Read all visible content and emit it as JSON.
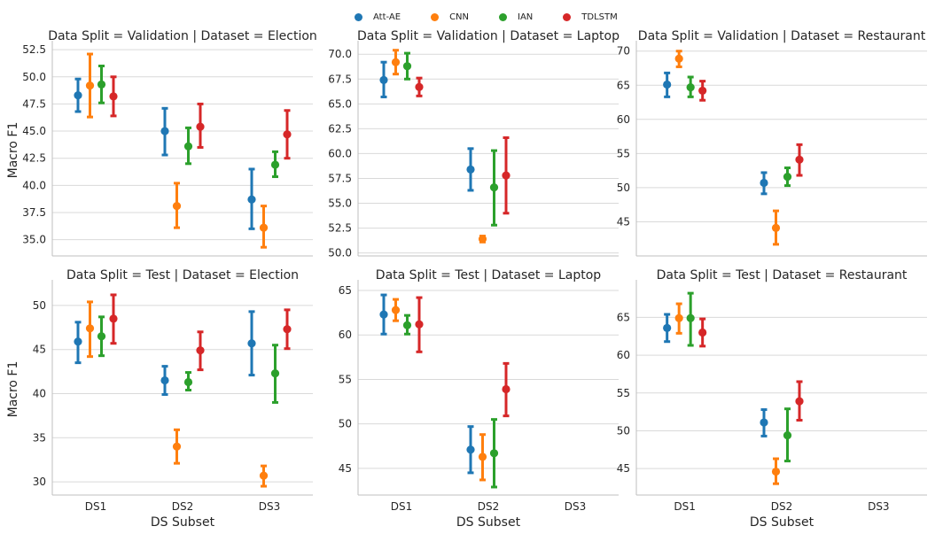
{
  "legend": [
    {
      "name": "Att-AE",
      "color": "#1f77b4"
    },
    {
      "name": "CNN",
      "color": "#ff7f0e"
    },
    {
      "name": "IAN",
      "color": "#2ca02c"
    },
    {
      "name": "TDLSTM",
      "color": "#d62728"
    }
  ],
  "chart_data": [
    {
      "type": "scatter",
      "title": "Data Split = Validation | Dataset = Election",
      "categories": [
        "DS1",
        "DS2",
        "DS3"
      ],
      "ylabel": "Macro F1",
      "xlabel": "",
      "ylim": [
        33.5,
        53.0
      ],
      "yticks": [
        "35.0",
        "37.5",
        "40.0",
        "42.5",
        "45.0",
        "47.5",
        "50.0",
        "52.5"
      ],
      "show_xticklabels": false,
      "series": [
        {
          "name": "Att-AE",
          "points": [
            {
              "x": "DS1",
              "y": 48.3,
              "low": 46.8,
              "high": 49.8
            },
            {
              "x": "DS2",
              "y": 45.0,
              "low": 42.8,
              "high": 47.1
            },
            {
              "x": "DS3",
              "y": 38.7,
              "low": 36.0,
              "high": 41.5
            }
          ]
        },
        {
          "name": "CNN",
          "points": [
            {
              "x": "DS1",
              "y": 49.2,
              "low": 46.3,
              "high": 52.1
            },
            {
              "x": "DS2",
              "y": 38.1,
              "low": 36.1,
              "high": 40.2
            },
            {
              "x": "DS3",
              "y": 36.1,
              "low": 34.3,
              "high": 38.1
            }
          ]
        },
        {
          "name": "IAN",
          "points": [
            {
              "x": "DS1",
              "y": 49.3,
              "low": 47.6,
              "high": 51.0
            },
            {
              "x": "DS2",
              "y": 43.6,
              "low": 42.0,
              "high": 45.3
            },
            {
              "x": "DS3",
              "y": 41.9,
              "low": 40.8,
              "high": 43.1
            }
          ]
        },
        {
          "name": "TDLSTM",
          "points": [
            {
              "x": "DS1",
              "y": 48.2,
              "low": 46.4,
              "high": 50.0
            },
            {
              "x": "DS2",
              "y": 45.4,
              "low": 43.5,
              "high": 47.5
            },
            {
              "x": "DS3",
              "y": 44.7,
              "low": 42.5,
              "high": 46.9
            }
          ]
        }
      ]
    },
    {
      "type": "scatter",
      "title": "Data Split = Validation | Dataset = Laptop",
      "categories": [
        "DS1",
        "DS2",
        "DS3"
      ],
      "ylabel": "",
      "xlabel": "",
      "ylim": [
        49.7,
        71.0
      ],
      "yticks": [
        "50.0",
        "52.5",
        "55.0",
        "57.5",
        "60.0",
        "62.5",
        "65.0",
        "67.5",
        "70.0"
      ],
      "show_xticklabels": false,
      "series": [
        {
          "name": "Att-AE",
          "points": [
            {
              "x": "DS1",
              "y": 67.4,
              "low": 65.7,
              "high": 69.2
            },
            {
              "x": "DS2",
              "y": 58.4,
              "low": 56.3,
              "high": 60.5
            }
          ]
        },
        {
          "name": "CNN",
          "points": [
            {
              "x": "DS1",
              "y": 69.2,
              "low": 68.0,
              "high": 70.4
            },
            {
              "x": "DS2",
              "y": 51.4,
              "low": 51.1,
              "high": 51.7
            }
          ]
        },
        {
          "name": "IAN",
          "points": [
            {
              "x": "DS1",
              "y": 68.8,
              "low": 67.5,
              "high": 70.1
            },
            {
              "x": "DS2",
              "y": 56.6,
              "low": 52.8,
              "high": 60.3
            }
          ]
        },
        {
          "name": "TDLSTM",
          "points": [
            {
              "x": "DS1",
              "y": 66.7,
              "low": 65.8,
              "high": 67.6
            },
            {
              "x": "DS2",
              "y": 57.8,
              "low": 54.0,
              "high": 61.6
            }
          ]
        }
      ]
    },
    {
      "type": "scatter",
      "title": "Data Split = Validation | Dataset = Restaurant",
      "categories": [
        "DS1",
        "DS2",
        "DS3"
      ],
      "ylabel": "",
      "xlabel": "",
      "ylim": [
        40.0,
        71.0
      ],
      "yticks": [
        "45",
        "50",
        "55",
        "60",
        "65",
        "70"
      ],
      "show_xticklabels": false,
      "series": [
        {
          "name": "Att-AE",
          "points": [
            {
              "x": "DS1",
              "y": 65.1,
              "low": 63.3,
              "high": 66.8
            },
            {
              "x": "DS2",
              "y": 50.7,
              "low": 49.1,
              "high": 52.2
            }
          ]
        },
        {
          "name": "CNN",
          "points": [
            {
              "x": "DS1",
              "y": 68.9,
              "low": 67.7,
              "high": 70.0
            },
            {
              "x": "DS2",
              "y": 44.1,
              "low": 41.7,
              "high": 46.6
            }
          ]
        },
        {
          "name": "IAN",
          "points": [
            {
              "x": "DS1",
              "y": 64.7,
              "low": 63.3,
              "high": 66.2
            },
            {
              "x": "DS2",
              "y": 51.6,
              "low": 50.3,
              "high": 52.9
            }
          ]
        },
        {
          "name": "TDLSTM",
          "points": [
            {
              "x": "DS1",
              "y": 64.2,
              "low": 62.8,
              "high": 65.6
            },
            {
              "x": "DS2",
              "y": 54.1,
              "low": 51.8,
              "high": 56.3
            }
          ]
        }
      ]
    },
    {
      "type": "scatter",
      "title": "Data Split = Test | Dataset = Election",
      "categories": [
        "DS1",
        "DS2",
        "DS3"
      ],
      "ylabel": "Macro F1",
      "xlabel": "DS Subset",
      "ylim": [
        28.5,
        52.5
      ],
      "yticks": [
        "30",
        "35",
        "40",
        "45",
        "50"
      ],
      "show_xticklabels": true,
      "series": [
        {
          "name": "Att-AE",
          "points": [
            {
              "x": "DS1",
              "y": 45.9,
              "low": 43.5,
              "high": 48.1
            },
            {
              "x": "DS2",
              "y": 41.5,
              "low": 39.9,
              "high": 43.1
            },
            {
              "x": "DS3",
              "y": 45.7,
              "low": 42.1,
              "high": 49.3
            }
          ]
        },
        {
          "name": "CNN",
          "points": [
            {
              "x": "DS1",
              "y": 47.4,
              "low": 44.2,
              "high": 50.4
            },
            {
              "x": "DS2",
              "y": 34.0,
              "low": 32.1,
              "high": 35.9
            },
            {
              "x": "DS3",
              "y": 30.7,
              "low": 29.5,
              "high": 31.8
            }
          ]
        },
        {
          "name": "IAN",
          "points": [
            {
              "x": "DS1",
              "y": 46.5,
              "low": 44.3,
              "high": 48.7
            },
            {
              "x": "DS2",
              "y": 41.3,
              "low": 40.4,
              "high": 42.4
            },
            {
              "x": "DS3",
              "y": 42.3,
              "low": 39.0,
              "high": 45.5
            }
          ]
        },
        {
          "name": "TDLSTM",
          "points": [
            {
              "x": "DS1",
              "y": 48.5,
              "low": 45.7,
              "high": 51.2
            },
            {
              "x": "DS2",
              "y": 44.9,
              "low": 42.7,
              "high": 47.0
            },
            {
              "x": "DS3",
              "y": 47.3,
              "low": 45.1,
              "high": 49.5
            }
          ]
        }
      ]
    },
    {
      "type": "scatter",
      "title": "Data Split = Test | Dataset = Laptop",
      "categories": [
        "DS1",
        "DS2",
        "DS3"
      ],
      "ylabel": "",
      "xlabel": "DS Subset",
      "ylim": [
        42.0,
        65.8
      ],
      "yticks": [
        "45",
        "50",
        "55",
        "60",
        "65"
      ],
      "show_xticklabels": true,
      "series": [
        {
          "name": "Att-AE",
          "points": [
            {
              "x": "DS1",
              "y": 62.3,
              "low": 60.1,
              "high": 64.5
            },
            {
              "x": "DS2",
              "y": 47.1,
              "low": 44.5,
              "high": 49.7
            }
          ]
        },
        {
          "name": "CNN",
          "points": [
            {
              "x": "DS1",
              "y": 62.8,
              "low": 61.6,
              "high": 64.0
            },
            {
              "x": "DS2",
              "y": 46.3,
              "low": 43.7,
              "high": 48.8
            }
          ]
        },
        {
          "name": "IAN",
          "points": [
            {
              "x": "DS1",
              "y": 61.1,
              "low": 60.1,
              "high": 62.2
            },
            {
              "x": "DS2",
              "y": 46.7,
              "low": 42.9,
              "high": 50.5
            }
          ]
        },
        {
          "name": "TDLSTM",
          "points": [
            {
              "x": "DS1",
              "y": 61.2,
              "low": 58.1,
              "high": 64.2
            },
            {
              "x": "DS2",
              "y": 53.9,
              "low": 50.9,
              "high": 56.8
            }
          ]
        }
      ]
    },
    {
      "type": "scatter",
      "title": "Data Split = Test | Dataset = Restaurant",
      "categories": [
        "DS1",
        "DS2",
        "DS3"
      ],
      "ylabel": "",
      "xlabel": "DS Subset",
      "ylim": [
        41.5,
        69.5
      ],
      "yticks": [
        "45",
        "50",
        "55",
        "60",
        "65"
      ],
      "show_xticklabels": true,
      "series": [
        {
          "name": "Att-AE",
          "points": [
            {
              "x": "DS1",
              "y": 63.6,
              "low": 61.8,
              "high": 65.4
            },
            {
              "x": "DS2",
              "y": 51.1,
              "low": 49.3,
              "high": 52.8
            }
          ]
        },
        {
          "name": "CNN",
          "points": [
            {
              "x": "DS1",
              "y": 64.9,
              "low": 62.9,
              "high": 66.8
            },
            {
              "x": "DS2",
              "y": 44.6,
              "low": 43.0,
              "high": 46.3
            }
          ]
        },
        {
          "name": "IAN",
          "points": [
            {
              "x": "DS1",
              "y": 64.9,
              "low": 61.3,
              "high": 68.2
            },
            {
              "x": "DS2",
              "y": 49.4,
              "low": 46.0,
              "high": 52.9
            }
          ]
        },
        {
          "name": "TDLSTM",
          "points": [
            {
              "x": "DS1",
              "y": 63.0,
              "low": 61.2,
              "high": 64.8
            },
            {
              "x": "DS2",
              "y": 53.9,
              "low": 51.4,
              "high": 56.5
            }
          ]
        }
      ]
    }
  ]
}
